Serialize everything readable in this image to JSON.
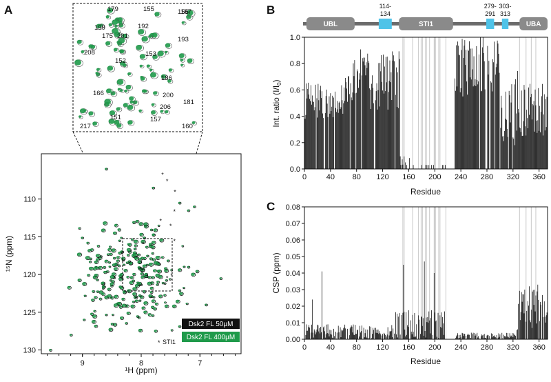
{
  "panels": {
    "A": "A",
    "B": "B",
    "C": "C"
  },
  "colors": {
    "fl50": "#111111",
    "fl400": "#1f9a4a",
    "cyan": "#4fc3e8",
    "domain": "#8a8a8a",
    "gridline": "#c8c8c8"
  },
  "chart_data": [
    {
      "type": "scatter",
      "title": "",
      "xlabel": "¹H (ppm)",
      "ylabel": "¹⁵N (ppm)",
      "xlim": [
        9.7,
        6.3
      ],
      "ylim": [
        130.5,
        104
      ],
      "x_reversed": true,
      "y_reversed": true,
      "xticks": [
        "9",
        "8",
        "7"
      ],
      "yticks": [
        "110",
        "115",
        "120",
        "125",
        "130"
      ],
      "legend": [
        "Dsk2 FL 50µM",
        "Dsk2 FL 400µM"
      ],
      "legend_marker_note": "STI1",
      "zoom_box": {
        "x": [
          7.3,
          8.2
        ],
        "y": [
          115.5,
          122.5
        ]
      },
      "inset_labels": [
        "179",
        "155",
        "156",
        "187",
        "199",
        "192",
        "193",
        "175",
        "201",
        "208",
        "153",
        "152",
        "186",
        "166",
        "200",
        "206",
        "181",
        "151",
        "157",
        "217",
        "160"
      ]
    },
    {
      "type": "bar",
      "xlabel": "Residue",
      "ylabel": "Int. ratio (I/I0)",
      "xlim": [
        0,
        373
      ],
      "ylim": [
        0,
        1.0
      ],
      "xticks": [
        "0",
        "40",
        "80",
        "120",
        "160",
        "200",
        "240",
        "280",
        "320",
        "360"
      ],
      "yticks": [
        "0.0",
        "0.2",
        "0.4",
        "0.6",
        "0.8",
        "1.0"
      ],
      "domains": [
        {
          "name": "UBL",
          "start": 3,
          "end": 77
        },
        {
          "name": "STI1",
          "start": 145,
          "end": 228
        },
        {
          "name": "UBA",
          "start": 330,
          "end": 373
        }
      ],
      "highlight_regions": [
        {
          "label_top": "114-",
          "label_bottom": "134",
          "start": 114,
          "end": 134
        },
        {
          "label_top": "279-",
          "label_bottom": "291",
          "start": 279,
          "end": 291
        },
        {
          "label_top": "303-",
          "label_bottom": "313",
          "start": 303,
          "end": 313
        }
      ],
      "gray_lines": [
        151,
        153,
        166,
        175,
        179,
        181,
        186,
        187,
        192,
        199,
        200,
        201,
        206,
        208,
        217,
        330,
        340,
        348,
        355,
        373
      ]
    },
    {
      "type": "bar",
      "xlabel": "Residue",
      "ylabel": "CSP (ppm)",
      "xlim": [
        0,
        373
      ],
      "ylim": [
        0,
        0.08
      ],
      "xticks": [
        "0",
        "40",
        "80",
        "120",
        "160",
        "200",
        "240",
        "280",
        "320",
        "360"
      ],
      "yticks": [
        "0.00",
        "0.01",
        "0.02",
        "0.03",
        "0.04",
        "0.05",
        "0.06",
        "0.07",
        "0.08"
      ],
      "gray_lines": [
        151,
        153,
        166,
        175,
        179,
        181,
        186,
        187,
        192,
        199,
        200,
        201,
        206,
        208,
        217,
        330,
        340,
        348,
        355,
        373
      ]
    }
  ]
}
